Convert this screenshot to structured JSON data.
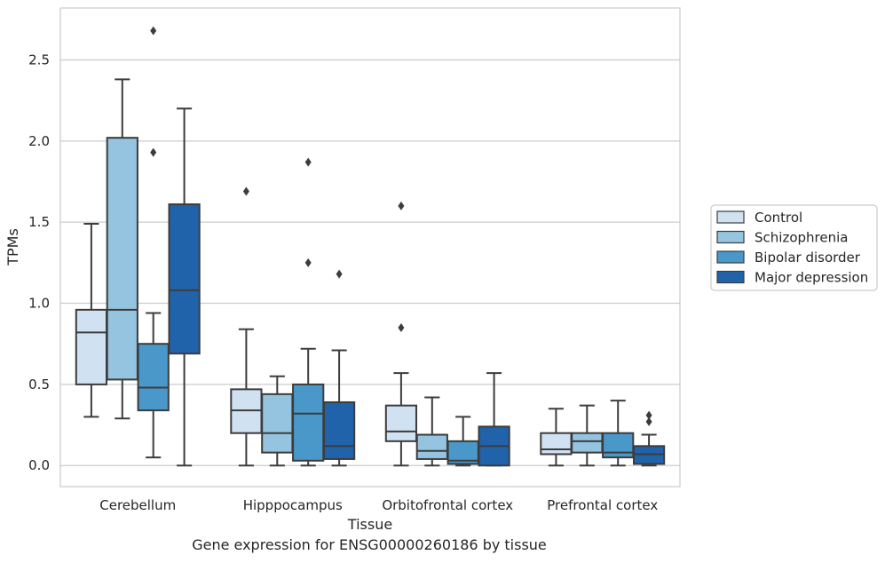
{
  "chart_data": {
    "type": "box",
    "title": "",
    "caption": "Gene expression for ENSG00000260186 by tissue",
    "xlabel": "Tissue",
    "ylabel": "TPMs",
    "ylim": [
      -0.13,
      2.82
    ],
    "yticks": [
      0.0,
      0.5,
      1.0,
      1.5,
      2.0,
      2.5
    ],
    "ytick_labels": [
      "0.0",
      "0.5",
      "1.0",
      "1.5",
      "2.0",
      "2.5"
    ],
    "categories": [
      "Cerebellum",
      "Hipppocampus",
      "Orbitofrontal cortex",
      "Prefrontal cortex"
    ],
    "grid": "horizontal",
    "legend_position": "right",
    "series": [
      {
        "name": "Control",
        "color": "#d0e1f2",
        "boxes": [
          {
            "min": 0.3,
            "q1": 0.5,
            "median": 0.82,
            "q3": 0.96,
            "max": 1.49,
            "outliers": []
          },
          {
            "min": 0.0,
            "q1": 0.2,
            "median": 0.34,
            "q3": 0.47,
            "max": 0.84,
            "outliers": [
              1.69
            ]
          },
          {
            "min": 0.0,
            "q1": 0.15,
            "median": 0.21,
            "q3": 0.37,
            "max": 0.57,
            "outliers": [
              0.85,
              1.6
            ]
          },
          {
            "min": 0.0,
            "q1": 0.07,
            "median": 0.1,
            "q3": 0.2,
            "max": 0.35,
            "outliers": []
          }
        ]
      },
      {
        "name": "Schizophrenia",
        "color": "#94c4df",
        "boxes": [
          {
            "min": 0.29,
            "q1": 0.53,
            "median": 0.96,
            "q3": 2.02,
            "max": 2.38,
            "outliers": []
          },
          {
            "min": 0.0,
            "q1": 0.08,
            "median": 0.2,
            "q3": 0.44,
            "max": 0.55,
            "outliers": []
          },
          {
            "min": 0.0,
            "q1": 0.04,
            "median": 0.09,
            "q3": 0.19,
            "max": 0.42,
            "outliers": []
          },
          {
            "min": 0.0,
            "q1": 0.08,
            "median": 0.15,
            "q3": 0.2,
            "max": 0.37,
            "outliers": []
          }
        ]
      },
      {
        "name": "Bipolar disorder",
        "color": "#4a98c9",
        "boxes": [
          {
            "min": 0.05,
            "q1": 0.34,
            "median": 0.48,
            "q3": 0.75,
            "max": 0.94,
            "outliers": [
              1.93,
              2.68
            ]
          },
          {
            "min": 0.0,
            "q1": 0.03,
            "median": 0.32,
            "q3": 0.5,
            "max": 0.72,
            "outliers": [
              1.25,
              1.87
            ]
          },
          {
            "min": 0.0,
            "q1": 0.01,
            "median": 0.03,
            "q3": 0.15,
            "max": 0.3,
            "outliers": []
          },
          {
            "min": 0.0,
            "q1": 0.05,
            "median": 0.08,
            "q3": 0.2,
            "max": 0.4,
            "outliers": []
          }
        ]
      },
      {
        "name": "Major depression",
        "color": "#2163aa",
        "boxes": [
          {
            "min": 0.0,
            "q1": 0.69,
            "median": 1.08,
            "q3": 1.61,
            "max": 2.2,
            "outliers": []
          },
          {
            "min": 0.0,
            "q1": 0.04,
            "median": 0.12,
            "q3": 0.39,
            "max": 0.71,
            "outliers": [
              1.18
            ]
          },
          {
            "min": 0.0,
            "q1": 0.0,
            "median": 0.12,
            "q3": 0.24,
            "max": 0.57,
            "outliers": []
          },
          {
            "min": 0.0,
            "q1": 0.01,
            "median": 0.07,
            "q3": 0.12,
            "max": 0.19,
            "outliers": [
              0.27,
              0.31
            ]
          }
        ]
      }
    ]
  }
}
